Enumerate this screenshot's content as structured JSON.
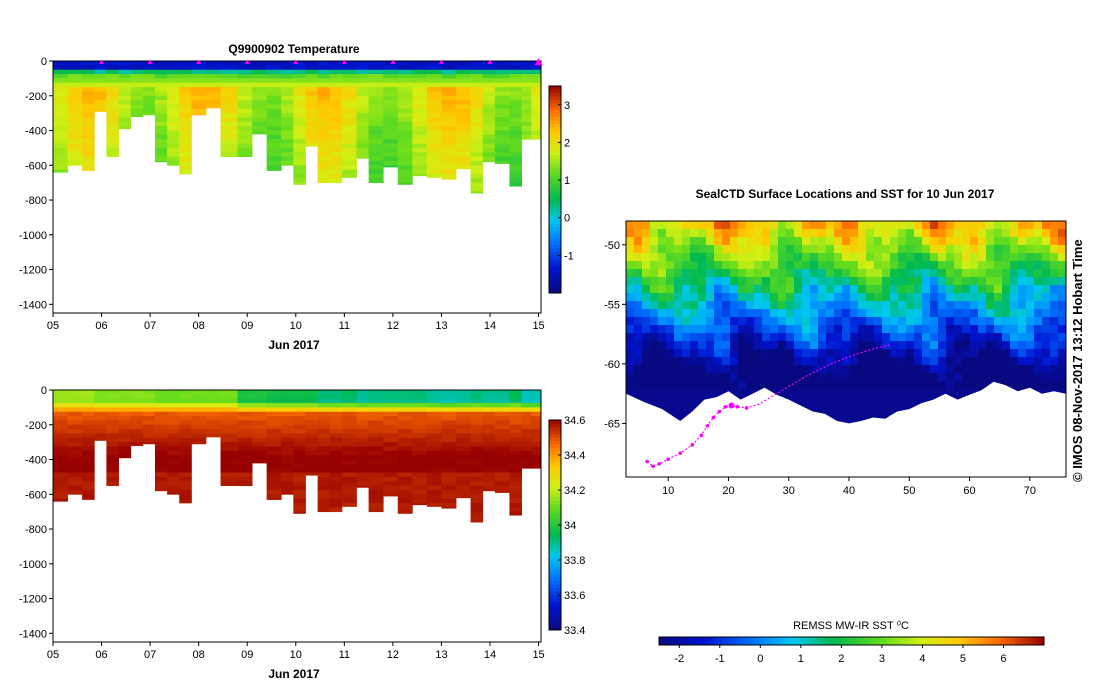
{
  "chart_data": [
    {
      "type": "heatmap",
      "title": "Q9900902  Temperature",
      "variable": "temperature",
      "xlabel": "Jun 2017",
      "x_tick_labels": [
        "05",
        "06",
        "07",
        "08",
        "09",
        "10",
        "11",
        "12",
        "13",
        "14",
        "15"
      ],
      "x_range_days": [
        5,
        15.05
      ],
      "y_tick_labels": [
        "0",
        "-200",
        "-400",
        "-600",
        "-800",
        "-1000",
        "-1200",
        "-1400"
      ],
      "ylim": [
        -1450,
        0
      ],
      "colorbar": {
        "min": -2,
        "max": 3.5,
        "tick_labels": [
          "-1",
          "0",
          "1",
          "2",
          "3"
        ],
        "tick_values": [
          -1,
          0,
          1,
          2,
          3
        ]
      },
      "surfacing_markers_days": [
        6,
        7,
        8,
        9,
        10,
        11,
        12,
        13,
        14,
        15
      ],
      "profile_days": [
        5.0,
        5.3,
        5.6,
        5.85,
        6.1,
        6.35,
        6.6,
        6.85,
        7.1,
        7.35,
        7.6,
        7.85,
        8.15,
        8.45,
        8.8,
        9.1,
        9.4,
        9.7,
        9.95,
        10.2,
        10.45,
        10.7,
        10.95,
        11.25,
        11.5,
        11.8,
        12.1,
        12.4,
        12.7,
        13.0,
        13.3,
        13.6,
        13.85,
        14.1,
        14.4,
        14.65,
        14.85
      ],
      "profile_depths": [
        640,
        600,
        630,
        290,
        550,
        390,
        320,
        310,
        580,
        600,
        650,
        310,
        270,
        550,
        550,
        420,
        630,
        600,
        710,
        490,
        700,
        700,
        670,
        560,
        700,
        610,
        710,
        660,
        670,
        680,
        620,
        760,
        580,
        590,
        720,
        450,
        450
      ],
      "surface_temp": -1.6,
      "deep_temp": 1.1
    },
    {
      "type": "heatmap",
      "title": "",
      "variable": "salinity",
      "xlabel": "Jun 2017",
      "x_tick_labels": [
        "05",
        "06",
        "07",
        "08",
        "09",
        "10",
        "11",
        "12",
        "13",
        "14",
        "15"
      ],
      "x_range_days": [
        5,
        15.05
      ],
      "y_tick_labels": [
        "0",
        "-200",
        "-400",
        "-600",
        "-800",
        "-1000",
        "-1200",
        "-1400"
      ],
      "ylim": [
        -1450,
        0
      ],
      "colorbar": {
        "min": 33.4,
        "max": 34.6,
        "tick_labels": [
          "34.6",
          "34.4",
          "34.2",
          "34",
          "33.8",
          "33.6",
          "33.4"
        ],
        "tick_values": [
          34.6,
          34.4,
          34.2,
          34.0,
          33.8,
          33.6,
          33.4
        ]
      },
      "surface_salinity_by_day": [
        34.15,
        34.15,
        34.15,
        34.12,
        34.12,
        34.12,
        34.12,
        34.12,
        34.1,
        34.1,
        34.1,
        34.1,
        34.1,
        34.1,
        33.97,
        33.97,
        33.95,
        33.95,
        33.95,
        33.95,
        33.9,
        33.9,
        33.92,
        33.88,
        33.9,
        33.9,
        33.9,
        33.9,
        33.88,
        33.86,
        33.88,
        33.9,
        33.88,
        33.88,
        33.92,
        33.85,
        33.85
      ],
      "deep_salinity": 34.62
    },
    {
      "type": "heatmap",
      "title": "SealCTD Surface Locations and SST for 10 Jun 2017",
      "variable": "sea surface temperature",
      "xlabel": "",
      "x_tick_labels": [
        "10",
        "20",
        "30",
        "40",
        "50",
        "60",
        "70"
      ],
      "x_tick_values": [
        10,
        20,
        30,
        40,
        50,
        60,
        70
      ],
      "xlim": [
        3,
        76
      ],
      "y_tick_labels": [
        "-50",
        "-55",
        "-60",
        "-65"
      ],
      "y_tick_values": [
        -50,
        -55,
        -60,
        -65
      ],
      "ylim": [
        -69.5,
        -48
      ],
      "colorbar": {
        "label": "REMSS MW-IR SST ⁰C",
        "min": -2.5,
        "max": 7,
        "tick_labels": [
          "-2",
          "-1",
          "0",
          "1",
          "2",
          "3",
          "4",
          "5",
          "6"
        ],
        "tick_values": [
          -2,
          -1,
          0,
          1,
          2,
          3,
          4,
          5,
          6
        ]
      },
      "track_lon": [
        6.5,
        7.5,
        8.5,
        10,
        12,
        14,
        15.5,
        16.5,
        17.5,
        18.5,
        19.5,
        20.5,
        21.5,
        23,
        25,
        27,
        29,
        31,
        33,
        35,
        37,
        39,
        41,
        43,
        45,
        47
      ],
      "track_lat": [
        -68.2,
        -68.6,
        -68.4,
        -68.0,
        -67.5,
        -66.8,
        -66.0,
        -65.2,
        -64.5,
        -64.0,
        -63.6,
        -63.5,
        -63.6,
        -63.7,
        -63.4,
        -62.8,
        -62.2,
        -61.6,
        -61.0,
        -60.5,
        -60.0,
        -59.6,
        -59.2,
        -58.9,
        -58.6,
        -58.4
      ]
    }
  ],
  "credit": "© IMOS 08-Nov-2017 13:12 Hobart Time"
}
